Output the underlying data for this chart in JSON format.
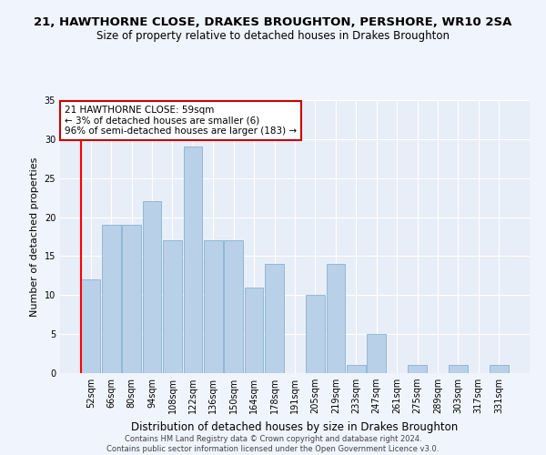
{
  "title": "21, HAWTHORNE CLOSE, DRAKES BROUGHTON, PERSHORE, WR10 2SA",
  "subtitle": "Size of property relative to detached houses in Drakes Broughton",
  "xlabel": "Distribution of detached houses by size in Drakes Broughton",
  "ylabel": "Number of detached properties",
  "categories": [
    "52sqm",
    "66sqm",
    "80sqm",
    "94sqm",
    "108sqm",
    "122sqm",
    "136sqm",
    "150sqm",
    "164sqm",
    "178sqm",
    "191sqm",
    "205sqm",
    "219sqm",
    "233sqm",
    "247sqm",
    "261sqm",
    "275sqm",
    "289sqm",
    "303sqm",
    "317sqm",
    "331sqm"
  ],
  "values": [
    12,
    19,
    19,
    22,
    17,
    29,
    17,
    17,
    11,
    14,
    0,
    10,
    14,
    1,
    5,
    0,
    1,
    0,
    1,
    0,
    1
  ],
  "bar_color": "#b8d0e8",
  "bar_edge_color": "#7aaaca",
  "annotation_text": "21 HAWTHORNE CLOSE: 59sqm\n← 3% of detached houses are smaller (6)\n96% of semi-detached houses are larger (183) →",
  "annotation_box_color": "#ffffff",
  "annotation_box_edge_color": "#cc0000",
  "footer": "Contains HM Land Registry data © Crown copyright and database right 2024.\nContains public sector information licensed under the Open Government Licence v3.0.",
  "ylim": [
    0,
    35
  ],
  "yticks": [
    0,
    5,
    10,
    15,
    20,
    25,
    30,
    35
  ],
  "bg_color": "#e8eef8",
  "grid_color": "#ffffff",
  "title_fontsize": 9.5,
  "subtitle_fontsize": 8.5,
  "xlabel_fontsize": 8.5,
  "ylabel_fontsize": 8,
  "tick_fontsize": 7,
  "footer_fontsize": 6
}
